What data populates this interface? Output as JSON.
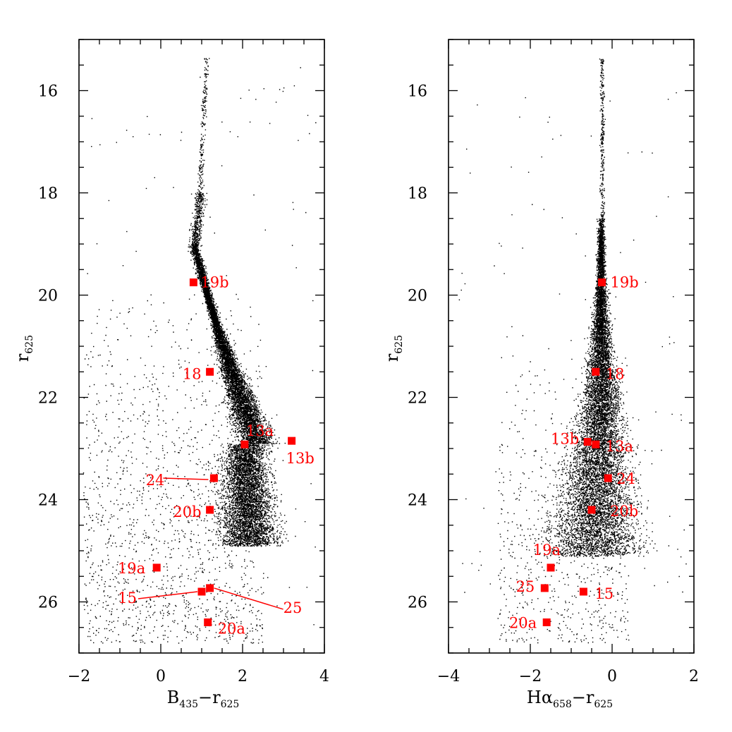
{
  "chart_data": [
    {
      "type": "scatter",
      "panel": "left",
      "xlabel": {
        "main": "B",
        "sub1": "435",
        "mid": "−r",
        "sub2": "625"
      },
      "ylabel": {
        "main": "r",
        "sub": "625"
      },
      "xlim": [
        -2,
        4
      ],
      "ylim": [
        27,
        15
      ],
      "xticks": [
        -2,
        0,
        2,
        4
      ],
      "xtick_labels": [
        "−2",
        "0",
        "2",
        "4"
      ],
      "yticks": [
        16,
        18,
        20,
        22,
        24,
        26
      ],
      "ytick_labels": [
        "16",
        "18",
        "20",
        "22",
        "24",
        "26"
      ],
      "marker_color": "#ff0000",
      "background_population": "dense cluster sequence of small black points (turnoff near r≈18, main sequence widening toward r≈25)",
      "markers": [
        {
          "label": "19b",
          "x": 0.8,
          "y": 19.75
        },
        {
          "label": "18",
          "x": 1.2,
          "y": 21.5
        },
        {
          "label": "13a",
          "x": 2.05,
          "y": 22.92
        },
        {
          "label": "13b",
          "x": 3.2,
          "y": 22.85
        },
        {
          "label": "24",
          "x": 1.3,
          "y": 23.58
        },
        {
          "label": "20b",
          "x": 1.2,
          "y": 24.2
        },
        {
          "label": "19a",
          "x": -0.1,
          "y": 25.33
        },
        {
          "label": "15",
          "x": 1.0,
          "y": 25.8
        },
        {
          "label": "25",
          "x": 1.2,
          "y": 25.73
        },
        {
          "label": "20a",
          "x": 1.15,
          "y": 26.4
        }
      ]
    },
    {
      "type": "scatter",
      "panel": "right",
      "xlabel": {
        "main": "Hα",
        "sub1": "658",
        "mid": "−r",
        "sub2": "625"
      },
      "ylabel": {
        "main": "r",
        "sub": "625"
      },
      "xlim": [
        -4,
        2
      ],
      "ylim": [
        27,
        15
      ],
      "xticks": [
        -4,
        -2,
        0,
        2
      ],
      "xtick_labels": [
        "−4",
        "−2",
        "0",
        "2"
      ],
      "yticks": [
        16,
        18,
        20,
        22,
        24,
        26
      ],
      "ytick_labels": [
        "16",
        "18",
        "20",
        "22",
        "24",
        "26"
      ],
      "marker_color": "#ff0000",
      "background_population": "narrow vertical stellar sequence near Hα−r≈−0.3 broadening at faint magnitudes",
      "markers": [
        {
          "label": "19b",
          "x": -0.25,
          "y": 19.75
        },
        {
          "label": "18",
          "x": -0.4,
          "y": 21.5
        },
        {
          "label": "13b",
          "x": -0.6,
          "y": 22.87
        },
        {
          "label": "13a",
          "x": -0.4,
          "y": 22.92
        },
        {
          "label": "24",
          "x": -0.1,
          "y": 23.58
        },
        {
          "label": "20b",
          "x": -0.5,
          "y": 24.2
        },
        {
          "label": "19a",
          "x": -1.5,
          "y": 25.33
        },
        {
          "label": "25",
          "x": -1.65,
          "y": 25.73
        },
        {
          "label": "15",
          "x": -0.7,
          "y": 25.8
        },
        {
          "label": "20a",
          "x": -1.6,
          "y": 26.4
        }
      ]
    }
  ]
}
